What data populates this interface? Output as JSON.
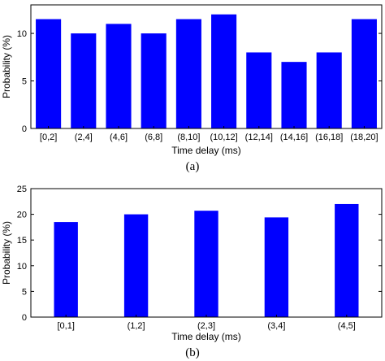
{
  "chart_data": [
    {
      "type": "bar",
      "caption": "(a)",
      "xlabel": "Time delay (ms)",
      "ylabel": "Probability (%)",
      "ylim": [
        0,
        13
      ],
      "yticks": [
        0,
        5,
        10
      ],
      "grid": false,
      "categories": [
        "[0,2]",
        "(2,4]",
        "(4,6]",
        "(6,8]",
        "(8,10]",
        "(10,12]",
        "(12,14]",
        "(14,16]",
        "(16,18]",
        "(18,20]"
      ],
      "values": [
        11.5,
        10.0,
        11.0,
        10.0,
        11.5,
        12.0,
        8.0,
        7.0,
        8.0,
        11.5
      ],
      "bar_color": "#0000ff"
    },
    {
      "type": "bar",
      "caption": "(b)",
      "xlabel": "Time delay (ms)",
      "ylabel": "Probability (%)",
      "ylim": [
        0,
        25
      ],
      "yticks": [
        0,
        5,
        10,
        15,
        20,
        25
      ],
      "grid": false,
      "categories": [
        "[0,1]",
        "(1,2]",
        "(2,3]",
        "(3,4]",
        "(4,5]"
      ],
      "values": [
        18.5,
        20.0,
        20.7,
        19.4,
        22.0
      ],
      "bar_color": "#0000ff"
    }
  ]
}
